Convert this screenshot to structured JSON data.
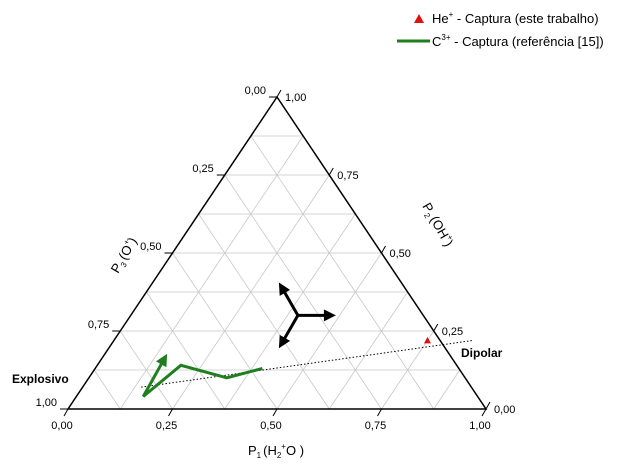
{
  "chart_data": {
    "type": "ternary",
    "grid": true,
    "axes": {
      "bottom": {
        "label_main": "P",
        "label_sub": "1",
        "label_open": "(H",
        "label_sub2": "2",
        "label_sup": "+",
        "label_close": "O )",
        "ticks": [
          "0,00",
          "0,25",
          "0,50",
          "0,75",
          "1,00"
        ]
      },
      "left": {
        "label_main": "P",
        "label_sub": "3",
        "label_open": "(O",
        "label_sup": "+",
        "label_close": ")",
        "ticks": [
          "1,00",
          "0,75",
          "0,50",
          "0,25",
          "0,00"
        ]
      },
      "right": {
        "label_main": "P",
        "label_sub": "2",
        "label_open": "(OH",
        "label_sup": "+",
        "label_close": ")",
        "ticks": [
          "0,00",
          "0,25",
          "0,50",
          "0,75",
          "1,00"
        ]
      }
    },
    "legend": [
      {
        "main": "He",
        "sup": "+",
        "rest": " - Captura (este trabalho)"
      },
      {
        "main": "C",
        "sup": "3+",
        "rest": " - Captura (referência [15])"
      }
    ],
    "annotations": {
      "explosivo": "Explosivo",
      "dipolar": "Dipolar"
    },
    "colors": {
      "he": "#e01010",
      "c3": "#1f7f1f",
      "arrows": "#000000",
      "grid": "#c8c8c8"
    },
    "series": [
      {
        "name": "He+ - Captura (este trabalho)",
        "marker": "triangle",
        "points": [
          {
            "p1": 0.75,
            "p2": 0.22,
            "p3": 0.03
          }
        ]
      },
      {
        "name": "C3+ - Captura (referência [15])",
        "marker": "line",
        "points": [
          {
            "p1": 0.4,
            "p2": 0.13,
            "p3": 0.47
          },
          {
            "p1": 0.33,
            "p2": 0.1,
            "p3": 0.57
          },
          {
            "p1": 0.2,
            "p2": 0.14,
            "p3": 0.66
          },
          {
            "p1": 0.16,
            "p2": 0.04,
            "p3": 0.8
          },
          {
            "p1": 0.15,
            "p2": 0.16,
            "p3": 0.69
          }
        ]
      }
    ],
    "dipolar_line": {
      "from": {
        "p1": 0.14,
        "p2": 0.07,
        "p3": 0.79
      },
      "to": {
        "p1": 0.86,
        "p2": 0.22,
        "p3": -0.08
      }
    },
    "direction_arrows_center": {
      "p1": 0.4,
      "p2": 0.3,
      "p3": 0.3
    }
  }
}
